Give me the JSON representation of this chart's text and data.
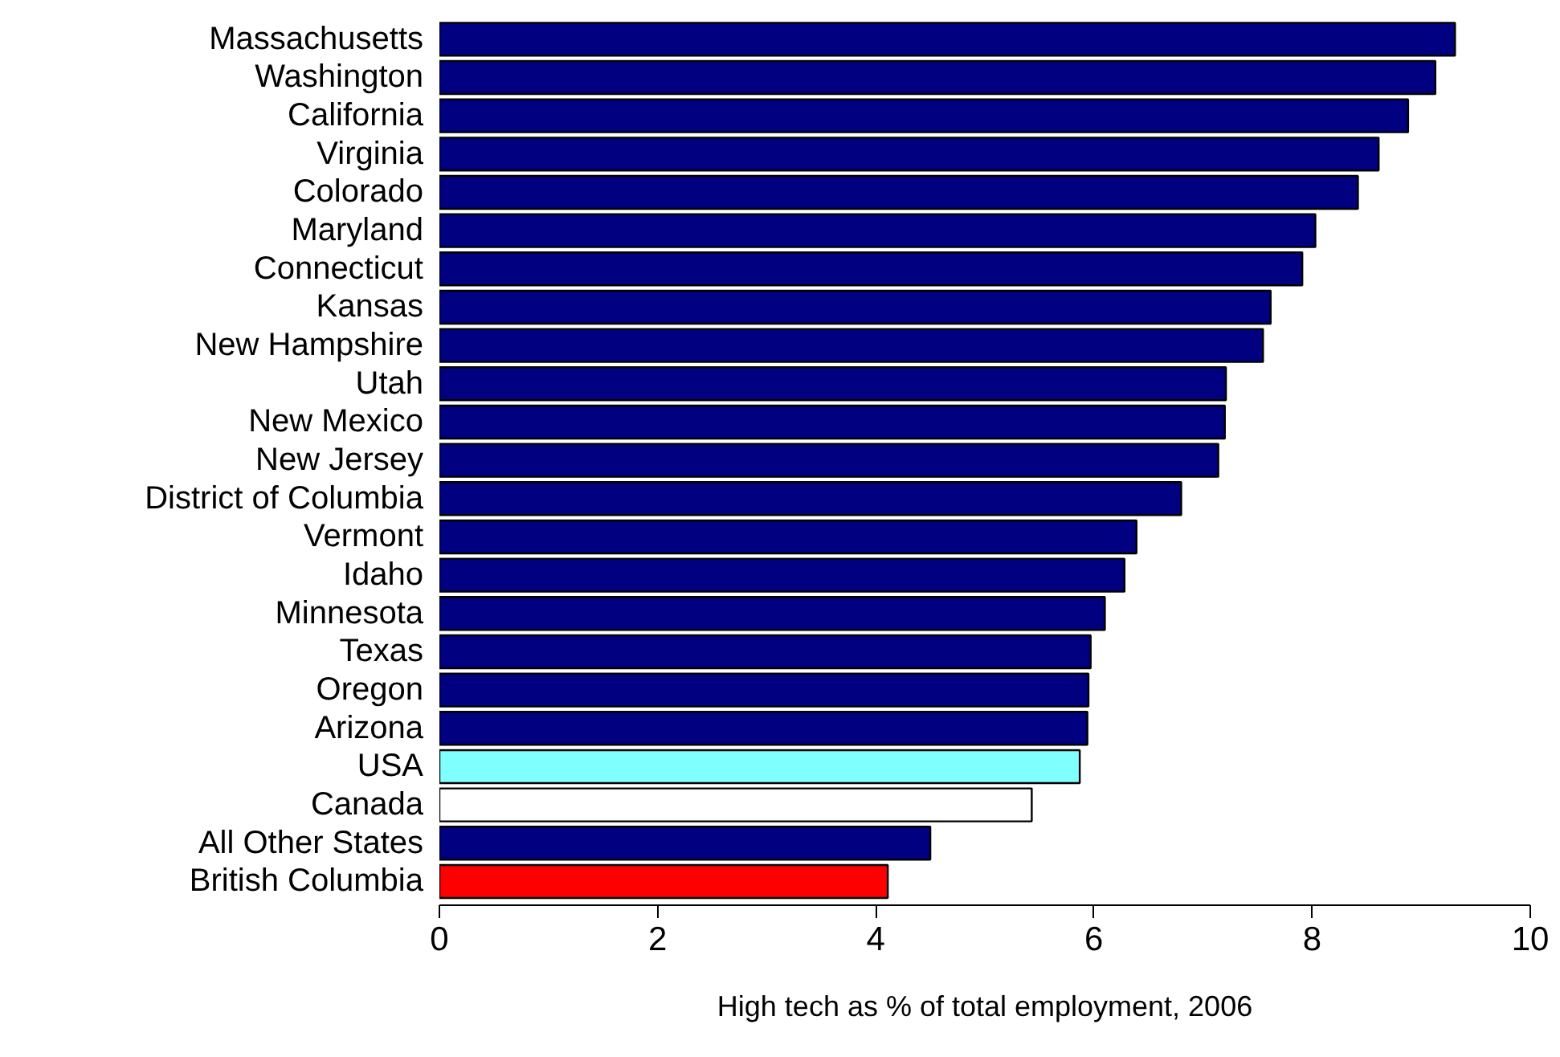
{
  "chart_data": {
    "type": "bar",
    "orientation": "horizontal",
    "xlabel": "High tech as % of total employment, 2006",
    "categories": [
      "Massachusetts",
      "Washington",
      "California",
      "Virginia",
      "Colorado",
      "Maryland",
      "Connecticut",
      "Kansas",
      "New Hampshire",
      "Utah",
      "New Mexico",
      "New Jersey",
      "District of Columbia",
      "Vermont",
      "Idaho",
      "Minnesota",
      "Texas",
      "Oregon",
      "Arizona",
      "USA",
      "Canada",
      "All Other States",
      "British Columbia"
    ],
    "values": [
      9.31,
      9.13,
      8.88,
      8.61,
      8.42,
      8.03,
      7.91,
      7.62,
      7.55,
      7.21,
      7.2,
      7.14,
      6.8,
      6.39,
      6.28,
      6.1,
      5.97,
      5.95,
      5.94,
      5.87,
      5.43,
      4.5,
      4.11
    ],
    "colors": [
      "#000080",
      "#000080",
      "#000080",
      "#000080",
      "#000080",
      "#000080",
      "#000080",
      "#000080",
      "#000080",
      "#000080",
      "#000080",
      "#000080",
      "#000080",
      "#000080",
      "#000080",
      "#000080",
      "#000080",
      "#000080",
      "#000080",
      "#80ffff",
      "#ffffff",
      "#000080",
      "#ff0000"
    ],
    "xlim": [
      0,
      10
    ],
    "xticks": [
      0,
      2,
      4,
      6,
      8,
      10
    ],
    "grid": false
  }
}
